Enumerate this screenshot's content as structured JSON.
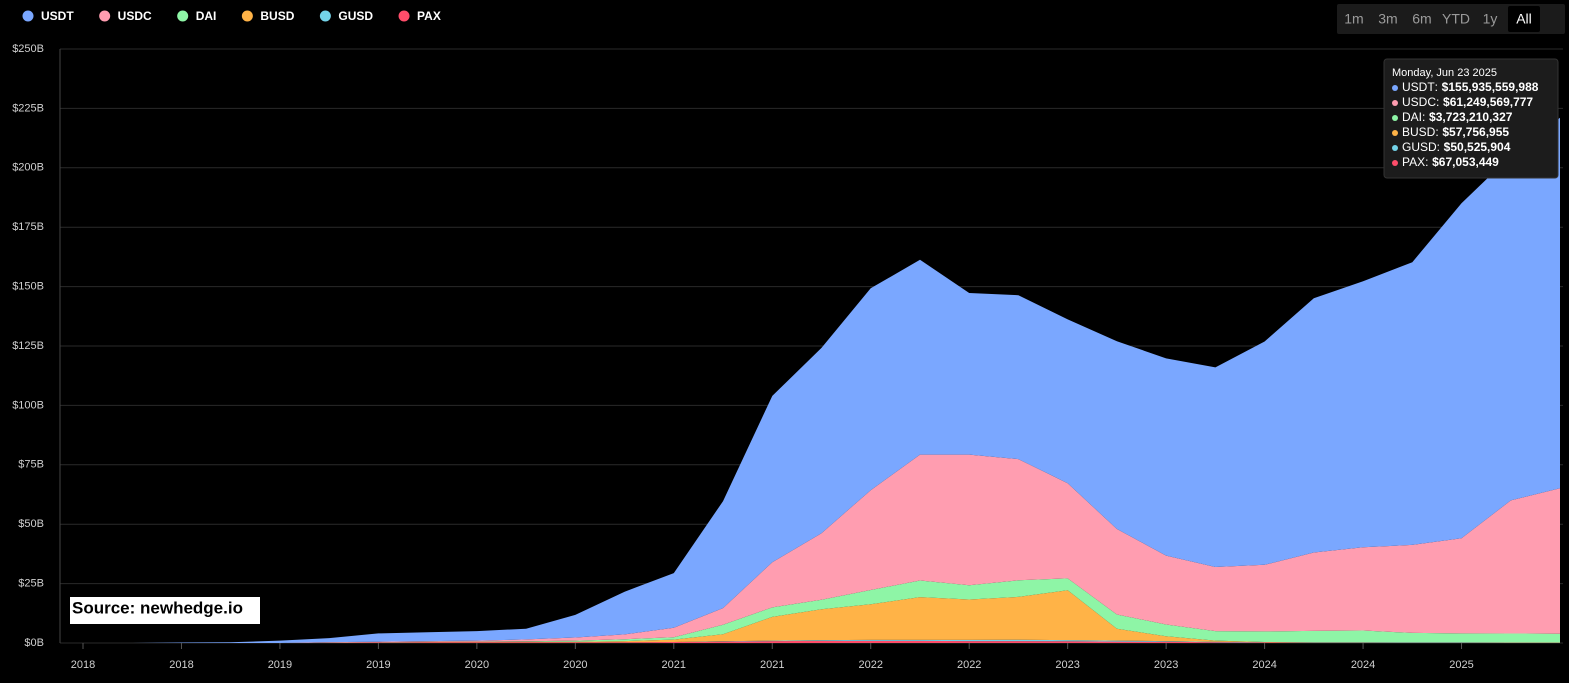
{
  "chart_data": {
    "type": "stacked-area",
    "categories": [
      "2018",
      null,
      "2018",
      null,
      "2019",
      null,
      "2019",
      null,
      "2020",
      null,
      "2020",
      null,
      "2021",
      null,
      "2021",
      null,
      "2022",
      null,
      "2022",
      null,
      "2023",
      null,
      "2023",
      null,
      "2024",
      null,
      "2024",
      null,
      "2025",
      null,
      null
    ],
    "series": [
      {
        "name": "USDT",
        "color": "#7aa7ff",
        "values": [
          0,
          0,
          0.2,
          0.3,
          1,
          1.7,
          3.5,
          3.7,
          4,
          4.5,
          9.5,
          18,
          23,
          45,
          70,
          78,
          85,
          82,
          68,
          69,
          69,
          79,
          83,
          84,
          94,
          107,
          112,
          119,
          141,
          145,
          155.94
        ]
      },
      {
        "name": "USDC",
        "color": "#ff9db0",
        "values": [
          0,
          0,
          0,
          0,
          0,
          0.2,
          0.2,
          0.3,
          0.4,
          0.8,
          1.3,
          2,
          4,
          7,
          19,
          28,
          42,
          53,
          55,
          51,
          40,
          36,
          29,
          27,
          28,
          33,
          35,
          37,
          40,
          56,
          61.25
        ]
      },
      {
        "name": "DAI",
        "color": "#8ef5a6",
        "values": [
          0,
          0,
          0,
          0,
          0,
          0.05,
          0.08,
          0.1,
          0.1,
          0.2,
          0.5,
          0.8,
          1,
          4,
          4,
          4,
          6,
          7,
          6,
          7,
          5,
          6,
          5,
          4,
          4.5,
          4.8,
          5,
          4,
          3.8,
          3.8,
          3.72
        ]
      },
      {
        "name": "BUSD",
        "color": "#ffb347",
        "values": [
          0,
          0,
          0,
          0,
          0,
          0,
          0.05,
          0.1,
          0.2,
          0.2,
          0.2,
          0.5,
          1,
          3,
          10,
          13,
          15,
          18,
          17,
          18,
          21,
          5,
          2,
          0.5,
          0.1,
          0.1,
          0.08,
          0.07,
          0.06,
          0.06,
          0.058
        ]
      },
      {
        "name": "GUSD",
        "color": "#74d3e8",
        "values": [
          0,
          0,
          0,
          0,
          0,
          0.01,
          0.01,
          0.01,
          0.01,
          0.01,
          0.01,
          0.01,
          0.02,
          0.1,
          0.2,
          0.3,
          0.4,
          0.4,
          0.5,
          0.6,
          0.5,
          0.4,
          0.3,
          0.2,
          0.1,
          0.1,
          0.1,
          0.1,
          0.1,
          0.05,
          0.051
        ]
      },
      {
        "name": "PAX",
        "color": "#ff4d6a",
        "values": [
          0,
          0,
          0,
          0,
          0,
          0.1,
          0.2,
          0.3,
          0.3,
          0.3,
          0.3,
          0.3,
          0.4,
          0.6,
          0.8,
          0.9,
          0.9,
          0.9,
          0.8,
          0.8,
          0.7,
          0.6,
          0.5,
          0.3,
          0.2,
          0.1,
          0.1,
          0.1,
          0.1,
          0.1,
          0.067
        ]
      }
    ],
    "ylim": [
      0,
      250
    ],
    "yticks": [
      {
        "value": 0,
        "label": "$0B"
      },
      {
        "value": 25,
        "label": "$25B"
      },
      {
        "value": 50,
        "label": "$50B"
      },
      {
        "value": 75,
        "label": "$75B"
      },
      {
        "value": 100,
        "label": "$100B"
      },
      {
        "value": 125,
        "label": "$125B"
      },
      {
        "value": 150,
        "label": "$150B"
      },
      {
        "value": 175,
        "label": "$175B"
      },
      {
        "value": 200,
        "label": "$200B"
      },
      {
        "value": 225,
        "label": "$225B"
      },
      {
        "value": 250,
        "label": "$250B"
      }
    ],
    "grid": true,
    "range_buttons": [
      "1m",
      "3m",
      "6m",
      "YTD",
      "1y",
      "All"
    ],
    "selected_range": "All",
    "tooltip": {
      "date": "Monday, Jun 23 2025",
      "values": [
        "$155,935,559,988",
        "$61,249,569,777",
        "$3,723,210,327",
        "$57,756,955",
        "$50,525,904",
        "$67,053,449"
      ]
    },
    "source": "Source: newhedge.io"
  }
}
